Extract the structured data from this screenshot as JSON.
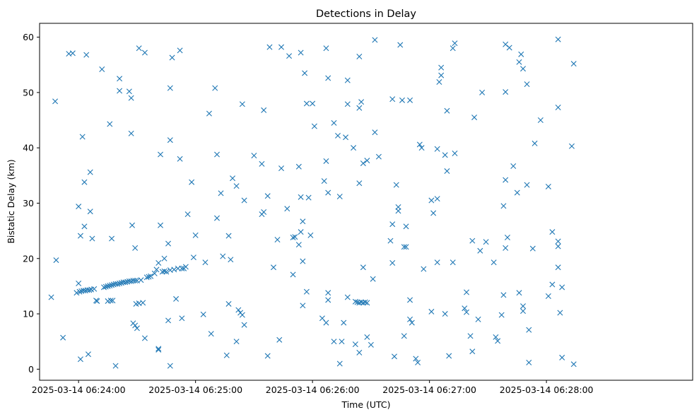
{
  "chart_data": {
    "type": "scatter",
    "title": "Detections in Delay",
    "xlabel": "Time (UTC)",
    "ylabel": "Bistatic Delay (km)",
    "x_unit": "seconds after 2025-03-14 06:24:00",
    "xlim": [
      -20,
      315
    ],
    "ylim": [
      -2,
      62.5
    ],
    "x_ticks": [
      {
        "value": 0,
        "label": "2025-03-14 06:24:00"
      },
      {
        "value": 60,
        "label": "2025-03-14 06:25:00"
      },
      {
        "value": 120,
        "label": "2025-03-14 06:26:00"
      },
      {
        "value": 180,
        "label": "2025-03-14 06:27:00"
      },
      {
        "value": 240,
        "label": "2025-03-14 06:28:00"
      }
    ],
    "y_ticks": [
      0,
      10,
      20,
      30,
      40,
      50,
      60
    ],
    "marker": "x",
    "marker_color": "#1f77b4",
    "grid": false,
    "series": [
      {
        "name": "",
        "points": [
          [
            -14,
            13
          ],
          [
            -12,
            48.4
          ],
          [
            -11.5,
            19.7
          ],
          [
            -8,
            5.7
          ],
          [
            -5,
            57
          ],
          [
            -3,
            57.1
          ],
          [
            -1,
            13.8
          ],
          [
            0,
            29.4
          ],
          [
            0,
            15.5
          ],
          [
            0.5,
            14
          ],
          [
            1,
            24.1
          ],
          [
            1,
            1.8
          ],
          [
            1.5,
            14.1
          ],
          [
            2,
            42
          ],
          [
            2.5,
            14.2
          ],
          [
            3,
            33.8
          ],
          [
            3,
            25.8
          ],
          [
            3.5,
            14.2
          ],
          [
            4,
            56.8
          ],
          [
            4.5,
            14.3
          ],
          [
            5,
            2.7
          ],
          [
            5.5,
            14.3
          ],
          [
            6,
            35.6
          ],
          [
            6,
            28.5
          ],
          [
            6.5,
            14.4
          ],
          [
            7,
            23.6
          ],
          [
            8,
            14.5
          ],
          [
            9,
            12.4
          ],
          [
            9.5,
            12.3
          ],
          [
            12,
            54.2
          ],
          [
            13,
            14.8
          ],
          [
            14,
            14.9
          ],
          [
            15,
            15
          ],
          [
            15,
            12.3
          ],
          [
            16,
            44.3
          ],
          [
            16,
            15.1
          ],
          [
            16.5,
            12.4
          ],
          [
            17,
            23.6
          ],
          [
            17,
            15.2
          ],
          [
            17.5,
            12.4
          ],
          [
            18,
            15.3
          ],
          [
            19,
            15.4
          ],
          [
            19,
            0.6
          ],
          [
            20,
            15.4
          ],
          [
            21,
            52.5
          ],
          [
            21,
            50.3
          ],
          [
            21,
            15.5
          ],
          [
            22,
            15.6
          ],
          [
            23,
            15.7
          ],
          [
            24,
            15.7
          ],
          [
            25,
            15.8
          ],
          [
            26,
            50.2
          ],
          [
            26,
            15.9
          ],
          [
            27,
            49
          ],
          [
            27,
            42.6
          ],
          [
            27,
            15.9
          ],
          [
            27.5,
            26
          ],
          [
            28,
            8.3
          ],
          [
            28,
            16
          ],
          [
            29,
            21.9
          ],
          [
            29,
            7.9
          ],
          [
            29,
            16
          ],
          [
            29.5,
            11.8
          ],
          [
            30,
            16
          ],
          [
            30,
            7.4
          ],
          [
            31,
            58
          ],
          [
            31,
            11.9
          ],
          [
            32,
            16.1
          ],
          [
            33,
            12
          ],
          [
            34,
            57.2
          ],
          [
            34,
            5.6
          ],
          [
            35,
            16.6
          ],
          [
            36,
            16.7
          ],
          [
            37,
            16.8
          ],
          [
            39,
            17.3
          ],
          [
            40,
            18
          ],
          [
            41,
            19.2
          ],
          [
            41,
            3.7
          ],
          [
            41,
            3.5
          ],
          [
            42,
            38.8
          ],
          [
            42,
            26
          ],
          [
            43,
            17.6
          ],
          [
            44,
            20
          ],
          [
            44,
            17.7
          ],
          [
            45,
            17.6
          ],
          [
            46,
            22.7
          ],
          [
            46,
            8.8
          ],
          [
            47,
            50.8
          ],
          [
            47,
            41.4
          ],
          [
            47,
            17.9
          ],
          [
            47,
            0.6
          ],
          [
            48,
            56.3
          ],
          [
            49,
            18
          ],
          [
            50,
            12.7
          ],
          [
            51,
            18.2
          ],
          [
            52,
            57.6
          ],
          [
            52,
            38
          ],
          [
            53,
            18.2
          ],
          [
            53,
            9.2
          ],
          [
            54,
            18.2
          ],
          [
            55,
            18.5
          ],
          [
            56,
            28
          ],
          [
            58,
            33.8
          ],
          [
            59,
            20.2
          ],
          [
            60,
            24.2
          ],
          [
            64,
            9.9
          ],
          [
            65,
            19.3
          ],
          [
            67,
            46.2
          ],
          [
            68,
            6.4
          ],
          [
            70,
            50.8
          ],
          [
            71,
            27.3
          ],
          [
            71,
            38.8
          ],
          [
            73,
            31.8
          ],
          [
            74,
            20.4
          ],
          [
            76,
            2.5
          ],
          [
            77,
            11.8
          ],
          [
            77,
            24.1
          ],
          [
            78,
            19.8
          ],
          [
            79,
            34.5
          ],
          [
            81,
            33.1
          ],
          [
            81,
            5
          ],
          [
            82,
            10.7
          ],
          [
            83,
            10.2
          ],
          [
            84,
            47.9
          ],
          [
            84,
            9.8
          ],
          [
            85,
            30.5
          ],
          [
            85,
            8
          ],
          [
            90,
            38.6
          ],
          [
            94,
            37.1
          ],
          [
            94,
            28
          ],
          [
            95,
            46.8
          ],
          [
            95,
            28.4
          ],
          [
            97,
            31.3
          ],
          [
            97,
            2.4
          ],
          [
            98,
            58.2
          ],
          [
            100,
            18.4
          ],
          [
            102,
            23.4
          ],
          [
            103,
            5.3
          ],
          [
            104,
            36.3
          ],
          [
            104,
            58.2
          ],
          [
            107,
            29
          ],
          [
            108,
            56.6
          ],
          [
            110,
            17.1
          ],
          [
            110,
            23.8
          ],
          [
            111,
            23.9
          ],
          [
            113,
            36.6
          ],
          [
            113,
            22.5
          ],
          [
            114,
            57.2
          ],
          [
            114,
            31.1
          ],
          [
            114,
            24.8
          ],
          [
            115,
            26.7
          ],
          [
            115,
            19.5
          ],
          [
            115,
            11.5
          ],
          [
            116,
            53.5
          ],
          [
            117,
            48
          ],
          [
            117,
            14
          ],
          [
            118,
            31
          ],
          [
            119,
            24.2
          ],
          [
            120,
            48
          ],
          [
            121,
            43.9
          ],
          [
            125,
            9.2
          ],
          [
            126,
            34
          ],
          [
            127,
            37.6
          ],
          [
            127,
            8.4
          ],
          [
            127,
            58
          ],
          [
            128,
            52.6
          ],
          [
            128,
            31.9
          ],
          [
            128,
            13.8
          ],
          [
            128,
            12.5
          ],
          [
            131,
            44.5
          ],
          [
            131,
            5
          ],
          [
            133,
            42.2
          ],
          [
            134,
            31.2
          ],
          [
            134,
            1
          ],
          [
            135,
            5
          ],
          [
            136,
            8.4
          ],
          [
            137,
            41.9
          ],
          [
            138,
            52.2
          ],
          [
            138,
            47.9
          ],
          [
            138,
            13
          ],
          [
            141,
            40
          ],
          [
            142,
            12.2
          ],
          [
            142,
            4.5
          ],
          [
            143,
            12.1
          ],
          [
            144,
            56.5
          ],
          [
            144,
            47.2
          ],
          [
            144,
            33.6
          ],
          [
            144,
            12
          ],
          [
            144,
            3
          ],
          [
            145,
            12.1
          ],
          [
            145,
            48.3
          ],
          [
            146,
            37.2
          ],
          [
            146,
            18.4
          ],
          [
            146,
            12
          ],
          [
            147,
            12.1
          ],
          [
            148,
            37.7
          ],
          [
            148,
            12
          ],
          [
            148,
            5.8
          ],
          [
            150,
            4.4
          ],
          [
            151,
            16.3
          ],
          [
            152,
            42.8
          ],
          [
            152,
            59.5
          ],
          [
            154,
            38.4
          ],
          [
            160,
            23.2
          ],
          [
            161,
            48.8
          ],
          [
            161,
            26.2
          ],
          [
            161,
            19.2
          ],
          [
            162,
            2.3
          ],
          [
            163,
            33.3
          ],
          [
            164,
            29.3
          ],
          [
            164,
            28.6
          ],
          [
            165,
            58.6
          ],
          [
            166,
            48.6
          ],
          [
            167,
            22.1
          ],
          [
            167,
            6
          ],
          [
            168,
            25.8
          ],
          [
            168,
            22.1
          ],
          [
            170,
            48.6
          ],
          [
            170,
            12.5
          ],
          [
            170,
            9
          ],
          [
            171,
            8.4
          ],
          [
            173,
            1.9
          ],
          [
            174,
            1.2
          ],
          [
            175,
            40.6
          ],
          [
            176,
            40
          ],
          [
            177,
            18.1
          ],
          [
            181,
            30.5
          ],
          [
            181,
            10.4
          ],
          [
            182,
            28.2
          ],
          [
            184,
            39.8
          ],
          [
            184,
            30.8
          ],
          [
            184,
            19.3
          ],
          [
            185,
            51.9
          ],
          [
            186,
            54.5
          ],
          [
            186,
            53.1
          ],
          [
            188,
            38.7
          ],
          [
            188,
            10
          ],
          [
            189,
            46.7
          ],
          [
            189,
            35.8
          ],
          [
            190,
            2.4
          ],
          [
            192,
            58
          ],
          [
            192,
            19.3
          ],
          [
            193,
            58.9
          ],
          [
            193,
            39
          ],
          [
            198,
            11
          ],
          [
            199,
            13.9
          ],
          [
            199,
            10.3
          ],
          [
            201,
            6
          ],
          [
            202,
            23.2
          ],
          [
            202,
            3.2
          ],
          [
            203,
            45.5
          ],
          [
            205,
            9
          ],
          [
            206,
            21.4
          ],
          [
            207,
            50
          ],
          [
            209,
            23
          ],
          [
            213,
            19.3
          ],
          [
            214,
            5.8
          ],
          [
            215,
            5.1
          ],
          [
            217,
            9.8
          ],
          [
            218,
            29.5
          ],
          [
            218,
            13.4
          ],
          [
            219,
            58.7
          ],
          [
            219,
            50.1
          ],
          [
            219,
            34.2
          ],
          [
            219,
            21.9
          ],
          [
            220,
            23.8
          ],
          [
            221,
            58.1
          ],
          [
            223,
            36.7
          ],
          [
            225,
            31.9
          ],
          [
            226,
            55.5
          ],
          [
            226,
            13.8
          ],
          [
            227,
            56.9
          ],
          [
            228,
            54.3
          ],
          [
            228,
            11.4
          ],
          [
            228,
            10.5
          ],
          [
            230,
            51.5
          ],
          [
            230,
            33.3
          ],
          [
            231,
            7.1
          ],
          [
            231,
            1.2
          ],
          [
            233,
            21.8
          ],
          [
            234,
            40.8
          ],
          [
            237,
            45
          ],
          [
            241,
            33
          ],
          [
            241,
            13.2
          ],
          [
            243,
            24.8
          ],
          [
            243,
            15.3
          ],
          [
            246,
            59.6
          ],
          [
            246,
            47.3
          ],
          [
            246,
            23.1
          ],
          [
            246,
            22.2
          ],
          [
            246,
            18.4
          ],
          [
            247,
            10.2
          ],
          [
            248,
            14.8
          ],
          [
            248,
            2.1
          ],
          [
            253,
            40.3
          ],
          [
            254,
            55.2
          ],
          [
            254,
            0.9
          ]
        ]
      }
    ]
  }
}
